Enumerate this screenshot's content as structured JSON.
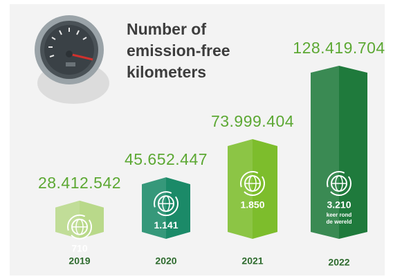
{
  "chart_data": {
    "type": "bar",
    "title": [
      "Number of",
      "emission-free",
      "kilometers"
    ],
    "categories": [
      "2019",
      "2020",
      "2021",
      "2022"
    ],
    "values": [
      28412542,
      45652447,
      73999404,
      128419704
    ],
    "value_labels": [
      "28.412.542",
      "45.652.447",
      "73.999.404",
      "128.419.704"
    ],
    "colors": [
      "#b9d98a",
      "#1b8a68",
      "#7dbd2c",
      "#1f7a3c"
    ],
    "laps": {
      "values": [
        710,
        1141,
        1850,
        3210
      ],
      "value_labels": [
        "710",
        "1.141",
        "1.850",
        "3.210"
      ],
      "note": [
        "keer rond",
        "de wereld"
      ]
    }
  }
}
